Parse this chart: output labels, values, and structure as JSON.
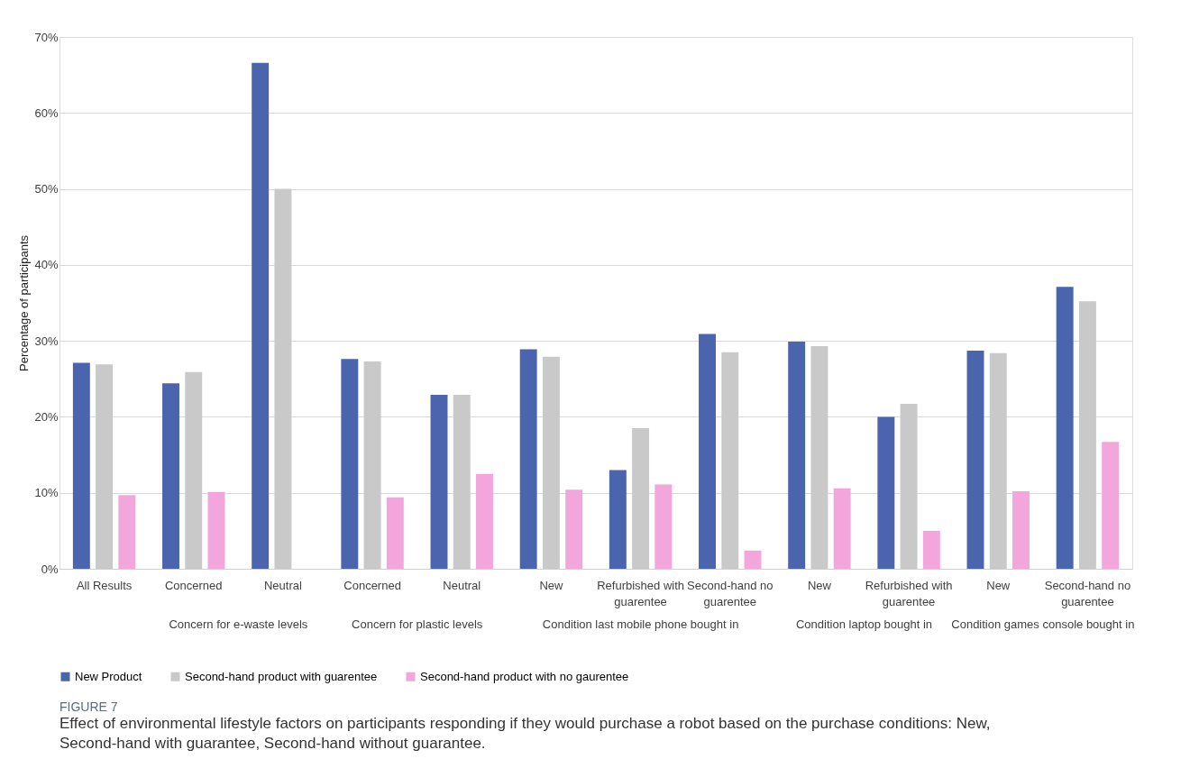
{
  "chart_data": {
    "type": "bar",
    "title": "FIGURE 7",
    "subtitle": "Effect of environmental lifestyle factors on participants responding if they would purchase a robot based on the purchase conditions: New,\nSecond-hand with guarantee, Second-hand without guarantee.",
    "ylabel": "Percentage of participants",
    "categories": [
      "All Results",
      "Concerned",
      "Neutral",
      "Concerned",
      "Neutral",
      "New",
      "Refurbished with\nguarentee",
      "Second-hand no\nguarentee",
      "New",
      "Refurbished with\nguarentee",
      "New",
      "Second-hand no\nguarentee"
    ],
    "annotations": [
      "Concern for e-waste levels",
      "Concern for plastic levels",
      "Condition last mobile phone bought in",
      "Condition laptop bought in",
      "Condition games console bought in"
    ],
    "series": [
      {
        "name": "New Product",
        "color": "#4a64ad",
        "values": [
          27.1,
          24.4,
          66.6,
          27.6,
          22.9,
          28.9,
          13.0,
          30.9,
          29.9,
          20.0,
          28.7,
          37.1
        ]
      },
      {
        "name": "Second-hand product with guarentee",
        "color": "#c9c9c9",
        "values": [
          26.9,
          25.9,
          50.0,
          27.3,
          22.9,
          27.9,
          18.5,
          28.5,
          29.3,
          21.7,
          28.4,
          35.2
        ]
      },
      {
        "name": "Second-hand product with no gaurentee",
        "color": "#f2a6dc",
        "values": [
          9.7,
          10.1,
          null,
          9.4,
          12.5,
          10.4,
          11.1,
          2.4,
          10.6,
          5.0,
          10.2,
          16.7
        ]
      }
    ],
    "ylim": [
      0,
      70
    ],
    "yticks": [
      {
        "value": 0,
        "label": "0%"
      },
      {
        "value": 10,
        "label": "10%"
      },
      {
        "value": 20,
        "label": "20%"
      },
      {
        "value": 30,
        "label": "30%"
      },
      {
        "value": 40,
        "label": "40%"
      },
      {
        "value": 50,
        "label": "50%"
      },
      {
        "value": 60,
        "label": "60%"
      },
      {
        "value": 70,
        "label": "70%"
      }
    ],
    "grid": "y",
    "legend": "bottom"
  }
}
